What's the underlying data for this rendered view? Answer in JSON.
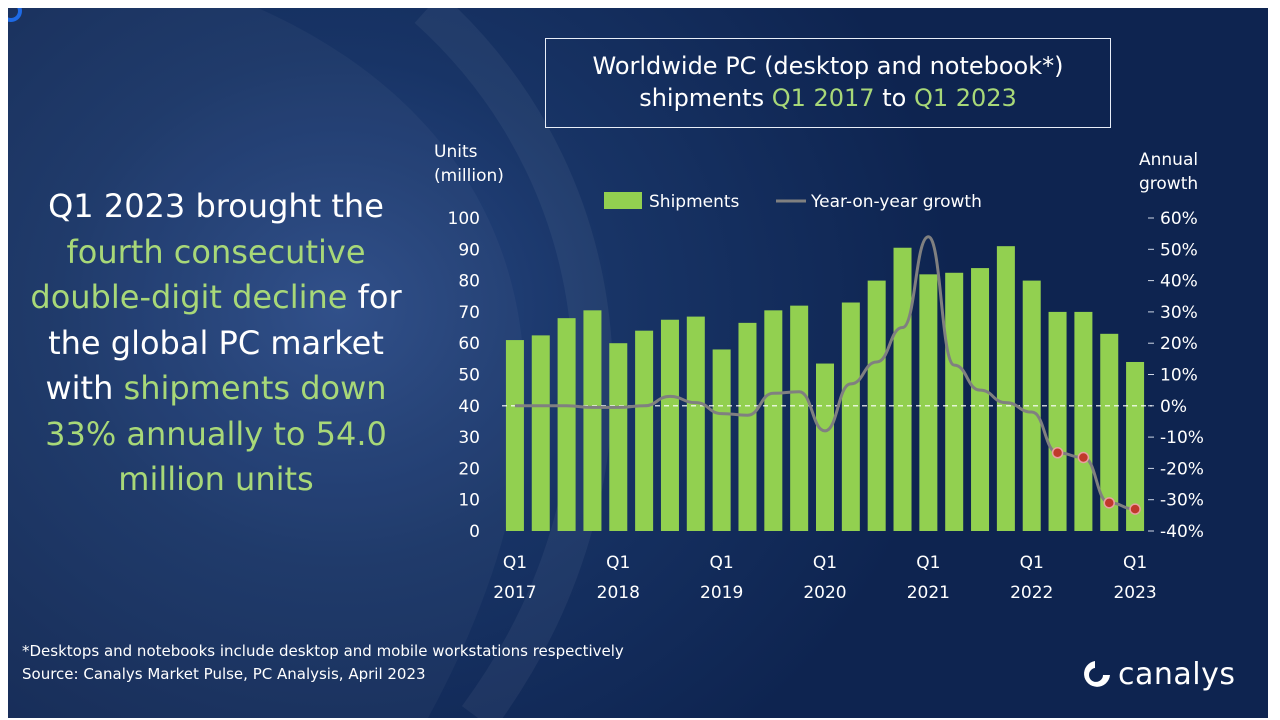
{
  "title": {
    "line1": "Worldwide PC (desktop and notebook*)",
    "line2_pre": "shipments ",
    "line2_start": "Q1 2017",
    "line2_mid": " to ",
    "line2_end": "Q1 2023"
  },
  "headline": {
    "part1": "Q1 2023 brought the",
    "part2": "fourth consecutive double-digit decline",
    "part3": "for the global PC market with",
    "part4": "shipments down 33% annually to 54.0 million units"
  },
  "footnote": {
    "note": "*Desktops and notebooks include desktop and mobile workstations respectively",
    "source": "Source: Canalys Market Pulse, PC Analysis, April 2023"
  },
  "logo": {
    "text": "canalys",
    "icon": "canalys-logo-icon"
  },
  "colors": {
    "bar": "#92d050",
    "line": "#808080",
    "marker": "#c0392b",
    "accent_text": "#a8d878",
    "background": "#183466"
  },
  "chart_data": {
    "type": "bar",
    "y_left_label": "Units (million)",
    "y_right_label": "Annual growth",
    "ylim_left": [
      0,
      100
    ],
    "ylim_right": [
      -40,
      60
    ],
    "yticks_left": [
      0,
      10,
      20,
      30,
      40,
      50,
      60,
      70,
      80,
      90,
      100
    ],
    "yticks_right": [
      "-40%",
      "-30%",
      "-20%",
      "-10%",
      "0%",
      "10%",
      "20%",
      "30%",
      "40%",
      "50%",
      "60%"
    ],
    "x_tick_labels": [
      {
        "index": 0,
        "line1": "Q1",
        "line2": "2017"
      },
      {
        "index": 4,
        "line1": "Q1",
        "line2": "2018"
      },
      {
        "index": 8,
        "line1": "Q1",
        "line2": "2019"
      },
      {
        "index": 12,
        "line1": "Q1",
        "line2": "2020"
      },
      {
        "index": 16,
        "line1": "Q1",
        "line2": "2021"
      },
      {
        "index": 20,
        "line1": "Q1",
        "line2": "2022"
      },
      {
        "index": 24,
        "line1": "Q1",
        "line2": "2023"
      }
    ],
    "quarters": [
      "Q1 2017",
      "Q2 2017",
      "Q3 2017",
      "Q4 2017",
      "Q1 2018",
      "Q2 2018",
      "Q3 2018",
      "Q4 2018",
      "Q1 2019",
      "Q2 2019",
      "Q3 2019",
      "Q4 2019",
      "Q1 2020",
      "Q2 2020",
      "Q3 2020",
      "Q4 2020",
      "Q1 2021",
      "Q2 2021",
      "Q3 2021",
      "Q4 2021",
      "Q1 2022",
      "Q2 2022",
      "Q3 2022",
      "Q4 2022",
      "Q1 2023"
    ],
    "series": [
      {
        "name": "Shipments",
        "axis": "left",
        "type": "bar",
        "values": [
          61,
          62.5,
          68,
          70.5,
          60,
          64,
          67.5,
          68.5,
          58,
          66.5,
          70.5,
          72,
          53.5,
          73,
          80,
          90.5,
          82,
          82.5,
          84,
          91,
          80,
          70,
          70,
          63,
          54
        ]
      },
      {
        "name": "Year-on-year growth",
        "axis": "right",
        "type": "line",
        "values": [
          0,
          0,
          0,
          -0.5,
          -0.5,
          0,
          3,
          1,
          -2.5,
          -3,
          4,
          4.5,
          -8,
          7,
          14,
          25,
          54,
          13,
          5,
          1,
          -2,
          -15,
          -16.5,
          -31,
          -33
        ],
        "highlighted_indices": [
          21,
          22,
          23,
          24
        ]
      }
    ],
    "legend_position": "top",
    "zero_line": "dashed"
  }
}
